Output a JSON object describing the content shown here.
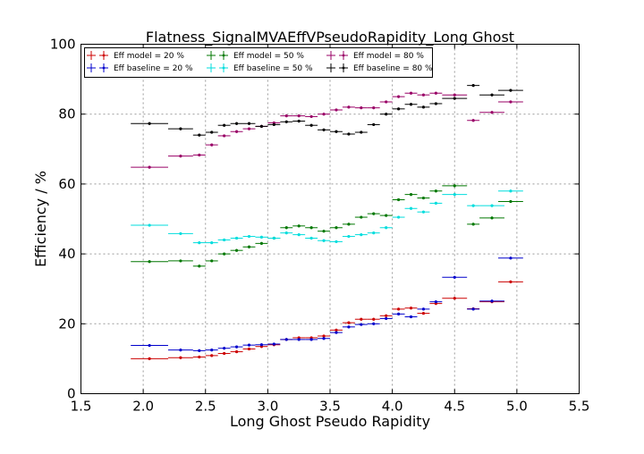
{
  "chart_data": {
    "type": "scatter",
    "title": "Flatness_SignalMVAEffVPseudoRapidity_Long Ghost",
    "xlabel": "Long Ghost Pseudo Rapidity",
    "ylabel": "Efficiency / %",
    "xlim": [
      1.5,
      5.5
    ],
    "ylim": [
      0,
      100
    ],
    "xticks": [
      "1.5",
      "2.0",
      "2.5",
      "3.0",
      "3.5",
      "4.0",
      "4.5",
      "5.0",
      "5.5"
    ],
    "yticks": [
      "0",
      "20",
      "40",
      "60",
      "80",
      "100"
    ],
    "grid": true,
    "legend_position": "top",
    "x_centers": [
      2.05,
      2.3,
      2.45,
      2.55,
      2.65,
      2.75,
      2.85,
      2.95,
      3.05,
      3.15,
      3.25,
      3.35,
      3.45,
      3.55,
      3.65,
      3.75,
      3.85,
      3.95,
      4.05,
      4.15,
      4.25,
      4.35,
      4.5,
      4.65,
      4.8,
      4.95
    ],
    "x_halfwidths": [
      0.15,
      0.1,
      0.05,
      0.05,
      0.05,
      0.05,
      0.05,
      0.05,
      0.05,
      0.05,
      0.05,
      0.05,
      0.05,
      0.05,
      0.05,
      0.05,
      0.05,
      0.05,
      0.05,
      0.05,
      0.05,
      0.05,
      0.1,
      0.05,
      0.1,
      0.1
    ],
    "series": [
      {
        "name": "Eff model = 20 %",
        "color": "#cc0000",
        "values": [
          10.0,
          10.3,
          10.5,
          10.9,
          11.5,
          12.0,
          12.8,
          13.5,
          14.0,
          15.5,
          16.0,
          16.0,
          16.5,
          18.2,
          20.3,
          21.3,
          21.3,
          22.3,
          24.2,
          24.5,
          23.0,
          25.8,
          27.3,
          24.3,
          26.3,
          32.0
        ]
      },
      {
        "name": "Eff baseline = 20 %",
        "color": "#0000cc",
        "values": [
          13.8,
          12.5,
          12.3,
          12.5,
          13.0,
          13.4,
          13.9,
          14.0,
          14.2,
          15.5,
          15.5,
          15.5,
          15.8,
          17.5,
          19.1,
          19.8,
          20.0,
          21.5,
          22.8,
          22.0,
          24.2,
          26.3,
          33.3,
          24.2,
          26.5,
          38.8
        ]
      },
      {
        "name": "Eff model = 50 %",
        "color": "#007700",
        "values": [
          37.8,
          38.0,
          36.5,
          38.0,
          40.0,
          41.0,
          42.0,
          43.0,
          44.5,
          47.5,
          48.0,
          47.5,
          46.5,
          47.5,
          48.5,
          50.5,
          51.5,
          51.0,
          55.5,
          57.0,
          56.0,
          58.0,
          59.5,
          48.5,
          50.3,
          55.0
        ]
      },
      {
        "name": "Eff baseline = 50 %",
        "color": "#00dddd",
        "values": [
          48.2,
          45.8,
          43.2,
          43.2,
          44.0,
          44.5,
          45.0,
          44.8,
          44.5,
          46.0,
          45.5,
          44.5,
          43.8,
          43.5,
          45.0,
          45.5,
          46.0,
          47.5,
          50.5,
          53.0,
          52.0,
          54.5,
          57.0,
          53.8,
          53.8,
          58.0
        ]
      },
      {
        "name": "Eff model = 80 %",
        "color": "#990066",
        "values": [
          64.8,
          68.0,
          68.3,
          71.2,
          73.8,
          75.0,
          75.8,
          76.5,
          77.5,
          79.5,
          79.5,
          79.3,
          80.0,
          81.2,
          82.0,
          81.8,
          81.8,
          83.5,
          85.0,
          86.0,
          85.5,
          86.0,
          85.5,
          78.2,
          80.5,
          83.5
        ]
      },
      {
        "name": "Eff baseline = 80 %",
        "color": "#000000",
        "values": [
          77.3,
          75.8,
          74.0,
          74.8,
          76.8,
          77.3,
          77.3,
          76.5,
          77.0,
          77.8,
          78.0,
          76.8,
          75.5,
          75.0,
          74.3,
          74.8,
          77.0,
          80.0,
          81.5,
          82.8,
          82.0,
          83.0,
          84.5,
          88.2,
          85.5,
          86.8
        ]
      }
    ]
  }
}
